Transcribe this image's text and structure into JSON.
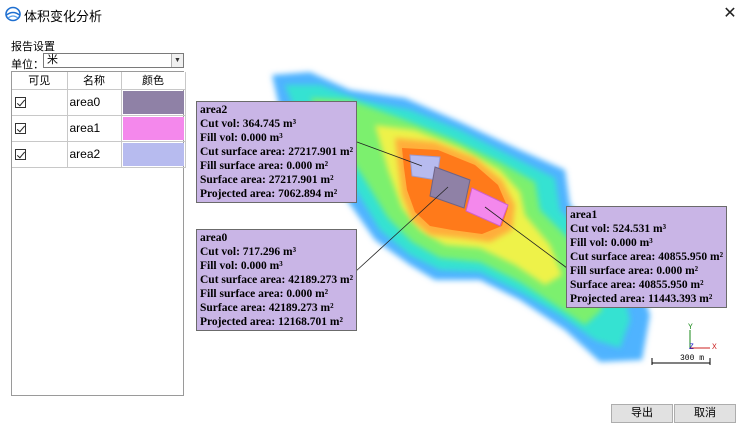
{
  "window": {
    "title": "体积变化分析",
    "close_glyph": "✕"
  },
  "settings": {
    "section_label": "报告设置",
    "unit_label": "单位：",
    "unit_value": "米"
  },
  "grid": {
    "headers": [
      "可见",
      "名称",
      "颜色"
    ],
    "rows": [
      {
        "visible": true,
        "name": "area0",
        "color": "#8f81a6"
      },
      {
        "visible": true,
        "name": "area1",
        "color": "#f488ec"
      },
      {
        "visible": true,
        "name": "area2",
        "color": "#b7bbef"
      }
    ]
  },
  "callouts": {
    "area2": {
      "title": "area2",
      "cut_vol": "Cut vol: 364.745 m³",
      "fill_vol": "Fill vol: 0.000 m³",
      "cut_surface": "Cut surface area: 27217.901 m²",
      "fill_surface": "Fill surface area: 0.000 m²",
      "surface": "Surface area: 27217.901 m²",
      "projected": "Projected area: 7062.894 m²"
    },
    "area0": {
      "title": "area0",
      "cut_vol": "Cut vol: 717.296 m³",
      "fill_vol": "Fill vol: 0.000 m³",
      "cut_surface": "Cut surface area: 42189.273 m²",
      "fill_surface": "Fill surface area: 0.000 m²",
      "surface": "Surface area: 42189.273 m²",
      "projected": "Projected area: 12168.701 m²"
    },
    "area1": {
      "title": "area1",
      "cut_vol": "Cut vol: 524.531 m³",
      "fill_vol": "Fill vol: 0.000 m³",
      "cut_surface": "Cut surface area: 40855.950 m²",
      "fill_surface": "Fill surface area: 0.000 m²",
      "surface": "Surface area: 40855.950 m²",
      "projected": "Projected area: 11443.393 m²"
    }
  },
  "axes": {
    "y": "Y",
    "z": "Z",
    "x": "X"
  },
  "scale_bar": "300 m",
  "footer": {
    "export_label": "导出",
    "cancel_label": "取消"
  },
  "colors": {
    "callout_bg": "#c9b5e6",
    "terrain_outer": "#4fb3ff",
    "terrain_mid": "#7cf06e",
    "terrain_hot": "#ff7a1a"
  }
}
